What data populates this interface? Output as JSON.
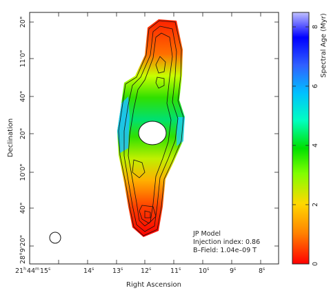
{
  "plot": {
    "xlabel": "Right Ascension",
    "ylabel": "Declination",
    "x_ticks": [
      {
        "h": "21",
        "hu": "h",
        "m": "44",
        "mu": "m",
        "s": "15",
        "su": "s"
      },
      {
        "s": "14",
        "su": "s"
      },
      {
        "s": "13",
        "su": "s"
      },
      {
        "s": "12",
        "su": "s"
      },
      {
        "s": "11",
        "su": "s"
      },
      {
        "s": "10",
        "su": "s"
      },
      {
        "s": "9",
        "su": "s"
      },
      {
        "s": "8",
        "su": "s"
      }
    ],
    "y_ticks": [
      "20\"",
      "11'0\"",
      "40\"",
      "20\"",
      "10'0\"",
      "40\"",
      "28°9'20\""
    ],
    "annotation": {
      "line1": "JP Model",
      "line2": "Injection index: 0.86",
      "line3": "B–Field: 1.04e–09 T"
    }
  },
  "colorbar": {
    "label": "Spectral Age (Myr)",
    "ticks": [
      "0",
      "2",
      "4",
      "6",
      "8"
    ],
    "range": [
      0,
      8.5
    ],
    "colors": [
      "#ff0000",
      "#ff8000",
      "#ffd800",
      "#80ff00",
      "#00e000",
      "#00ffc0",
      "#00c0ff",
      "#3060ff",
      "#0000ff",
      "#c0c0ff"
    ]
  }
}
